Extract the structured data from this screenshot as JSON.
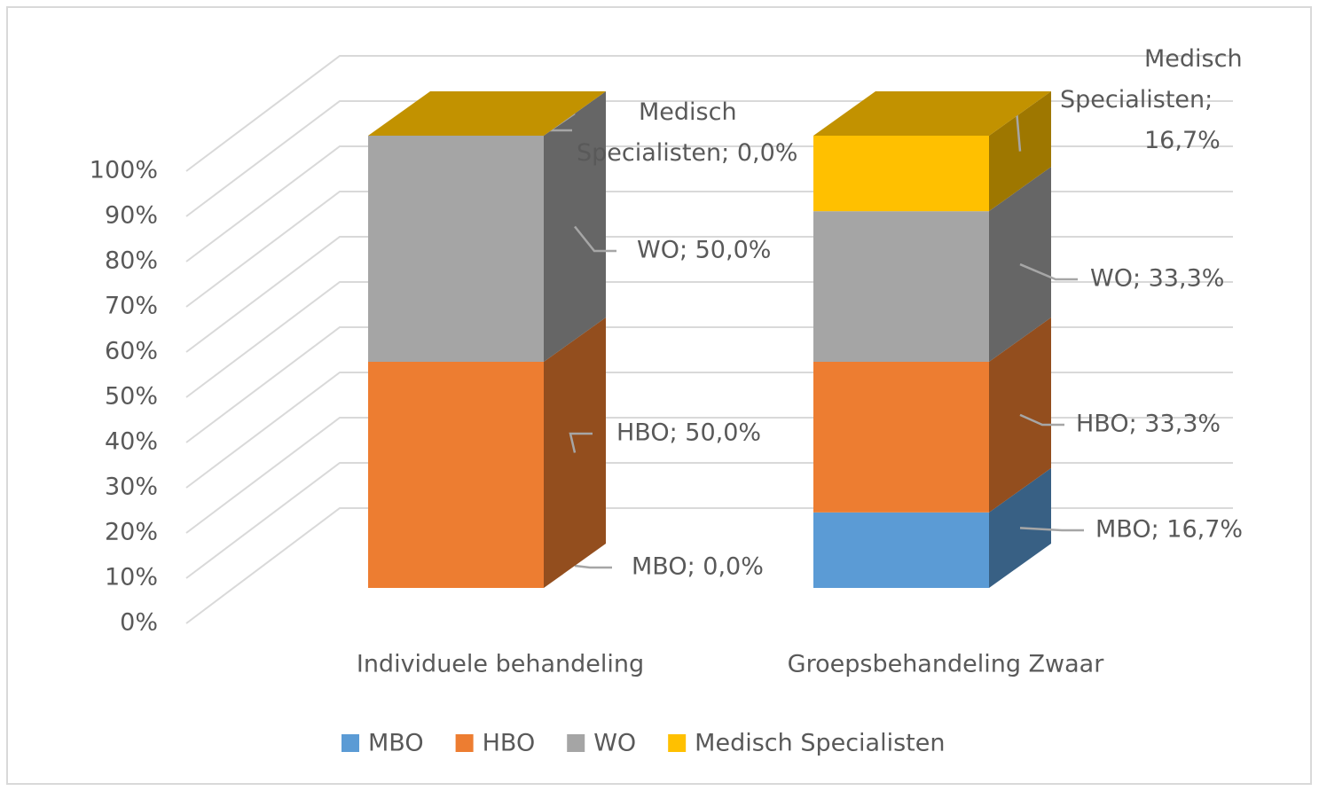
{
  "chart_data": {
    "type": "bar3d_stacked",
    "categories": [
      "Individuele behandeling",
      "Groepsbehandeling Zwaar"
    ],
    "series": [
      {
        "name": "MBO",
        "color": "#5b9bd5",
        "values": [
          0,
          16.7
        ],
        "value_labels": [
          "MBO; 0,0%",
          "MBO; 16,7%"
        ]
      },
      {
        "name": "HBO",
        "color": "#ed7d31",
        "values": [
          50,
          33.3
        ],
        "value_labels": [
          "HBO; 50,0%",
          "HBO; 33,3%"
        ]
      },
      {
        "name": "WO",
        "color": "#a5a5a5",
        "values": [
          50,
          33.3
        ],
        "value_labels": [
          "WO; 50,0%",
          "WO; 33,3%"
        ]
      },
      {
        "name": "Medisch Specialisten",
        "color": "#ffc000",
        "values": [
          0,
          16.7
        ],
        "value_labels": [
          "Medisch Specialisten; 0,0%",
          "Medisch Specialisten; 16,7%"
        ]
      }
    ],
    "ylim": [
      0,
      100
    ],
    "yticks": [
      {
        "value": 0,
        "label": "0%"
      },
      {
        "value": 10,
        "label": "10%"
      },
      {
        "value": 20,
        "label": "20%"
      },
      {
        "value": 30,
        "label": "30%"
      },
      {
        "value": 40,
        "label": "40%"
      },
      {
        "value": 50,
        "label": "50%"
      },
      {
        "value": 60,
        "label": "60%"
      },
      {
        "value": 70,
        "label": "70%"
      },
      {
        "value": 80,
        "label": "80%"
      },
      {
        "value": 90,
        "label": "90%"
      },
      {
        "value": 100,
        "label": "100%"
      }
    ],
    "grid": true,
    "legend": "bottom"
  }
}
